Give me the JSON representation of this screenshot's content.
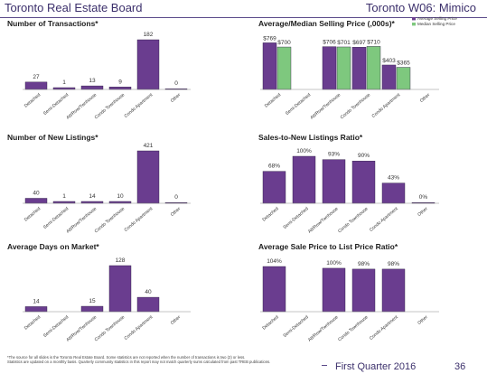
{
  "header": {
    "left_title": "Toronto Real Estate Board",
    "right_title": "Toronto W06: Mimico"
  },
  "colors": {
    "purple": "#6a3d8f",
    "green": "#7ec87e"
  },
  "categories": [
    "Detached",
    "Semi-Detached",
    "Att/Row/Twnhouse",
    "Condo Townhouse",
    "Condo Apartment",
    "Other"
  ],
  "chart_data": [
    {
      "id": "transactions",
      "type": "bar",
      "title": "Number of Transactions*",
      "categories": [
        "Detached",
        "Semi-Detached",
        "Att/Row/Twnhouse",
        "Condo Townhouse",
        "Condo Apartment",
        "Other"
      ],
      "values": [
        27,
        1,
        13,
        9,
        182,
        0
      ],
      "labels": [
        "27",
        "1",
        "13",
        "9",
        "182",
        "0"
      ]
    },
    {
      "id": "selling_price",
      "type": "bar",
      "title": "Average/Median Selling Price (,000s)*",
      "categories": [
        "Detached",
        "Semi-Detached",
        "Att/Row/Twnhouse",
        "Condo Townhouse",
        "Condo Apartment",
        "Other"
      ],
      "legend": [
        "Average Selling Price",
        "Median Selling Price"
      ],
      "series": [
        {
          "name": "Average Selling Price",
          "values": [
            769,
            null,
            706,
            697,
            403,
            null
          ],
          "labels": [
            "$769",
            "",
            "$706",
            "$697",
            "$403",
            ""
          ]
        },
        {
          "name": "Median Selling Price",
          "values": [
            700,
            null,
            701,
            710,
            365,
            null
          ],
          "labels": [
            "$700",
            "",
            "$701",
            "$710",
            "$365",
            ""
          ]
        }
      ]
    },
    {
      "id": "new_listings",
      "type": "bar",
      "title": "Number of New Listings*",
      "categories": [
        "Detached",
        "Semi-Detached",
        "Att/Row/Twnhouse",
        "Condo Townhouse",
        "Condo Apartment",
        "Other"
      ],
      "values": [
        40,
        1,
        14,
        10,
        421,
        0
      ],
      "labels": [
        "40",
        "1",
        "14",
        "10",
        "421",
        "0"
      ]
    },
    {
      "id": "snlr",
      "type": "bar",
      "title": "Sales-to-New Listings Ratio*",
      "categories": [
        "Detached",
        "Semi-Detached",
        "Att/Row/Twnhouse",
        "Condo Townhouse",
        "Condo Apartment",
        "Other"
      ],
      "values": [
        68,
        100,
        93,
        90,
        43,
        0
      ],
      "labels": [
        "68%",
        "100%",
        "93%",
        "90%",
        "43%",
        "0%"
      ]
    },
    {
      "id": "dom",
      "type": "bar",
      "title": "Average Days on Market*",
      "categories": [
        "Detached",
        "Semi-Detached",
        "Att/Row/Twnhouse",
        "Condo Townhouse",
        "Condo Apartment",
        "Other"
      ],
      "values": [
        14,
        null,
        15,
        128,
        40,
        null
      ],
      "labels": [
        "14",
        "",
        "15",
        "128",
        "40",
        ""
      ]
    },
    {
      "id": "splp",
      "type": "bar",
      "title": "Average Sale Price to List Price Ratio*",
      "categories": [
        "Detached",
        "Semi-Detached",
        "Att/Row/Twnhouse",
        "Condo Townhouse",
        "Condo Apartment",
        "Other"
      ],
      "values": [
        104,
        null,
        100,
        98,
        98,
        null
      ],
      "labels": [
        "104%",
        "",
        "100%",
        "98%",
        "98%",
        ""
      ]
    }
  ],
  "footer": {
    "footnote_1": "*The source for all slides is the Toronto Real Estate Board. Some statistics are not reported when the number of transactions is two (2) or less.",
    "footnote_2": "Statistics are updated on a monthly basis. Quarterly community statistics in this report may not match quarterly sums calculated from past TREB publications.",
    "quarter": "First Quarter 2016",
    "page": "36"
  }
}
